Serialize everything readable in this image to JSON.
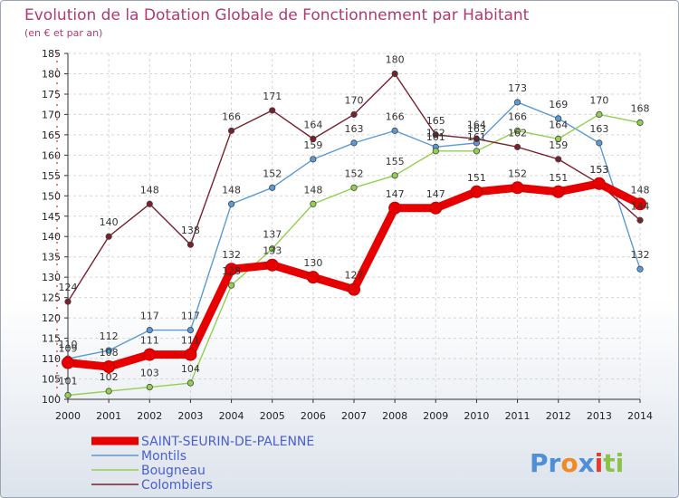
{
  "chart_data": {
    "type": "line",
    "title": "Evolution de la Dotation Globale de Fonctionnement par Habitant",
    "subtitle": "(en € et par an)",
    "xlabel": "",
    "ylabel": "",
    "ylim": [
      100,
      185
    ],
    "ytick_step": 5,
    "x": [
      "2000",
      "2001",
      "2002",
      "2003",
      "2004",
      "2005",
      "2006",
      "2007",
      "2008",
      "2009",
      "2010",
      "2011",
      "2012",
      "2013",
      "2014"
    ],
    "series": [
      {
        "name": "SAINT-SEURIN-DE-PALENNE",
        "color": "#e60000",
        "values": [
          109,
          108,
          111,
          111,
          132,
          133,
          130,
          127,
          147,
          147,
          151,
          152,
          151,
          153,
          148
        ]
      },
      {
        "name": "Montils",
        "color": "#5a9ad6",
        "values": [
          110,
          112,
          117,
          117,
          148,
          152,
          159,
          163,
          166,
          162,
          163,
          173,
          169,
          163,
          132
        ]
      },
      {
        "name": "Bougneau",
        "color": "#92d050",
        "values": [
          101,
          102,
          103,
          104,
          128,
          137,
          148,
          152,
          155,
          161,
          161,
          166,
          164,
          170,
          168
        ]
      },
      {
        "name": "Colombiers",
        "color": "#7a1f2b",
        "values": [
          124,
          140,
          148,
          138,
          166,
          171,
          164,
          170,
          180,
          165,
          164,
          162,
          159,
          153,
          144
        ]
      }
    ],
    "legend_position": "bottom-left",
    "grid": true
  },
  "branding": {
    "logo_parts": [
      "Pr",
      "o",
      "x",
      "i",
      "ti"
    ],
    "logo_colors": [
      "#4f8fd8",
      "#f08a24",
      "#4f8fd8",
      "#e63b2e",
      "#8bc34a"
    ]
  }
}
